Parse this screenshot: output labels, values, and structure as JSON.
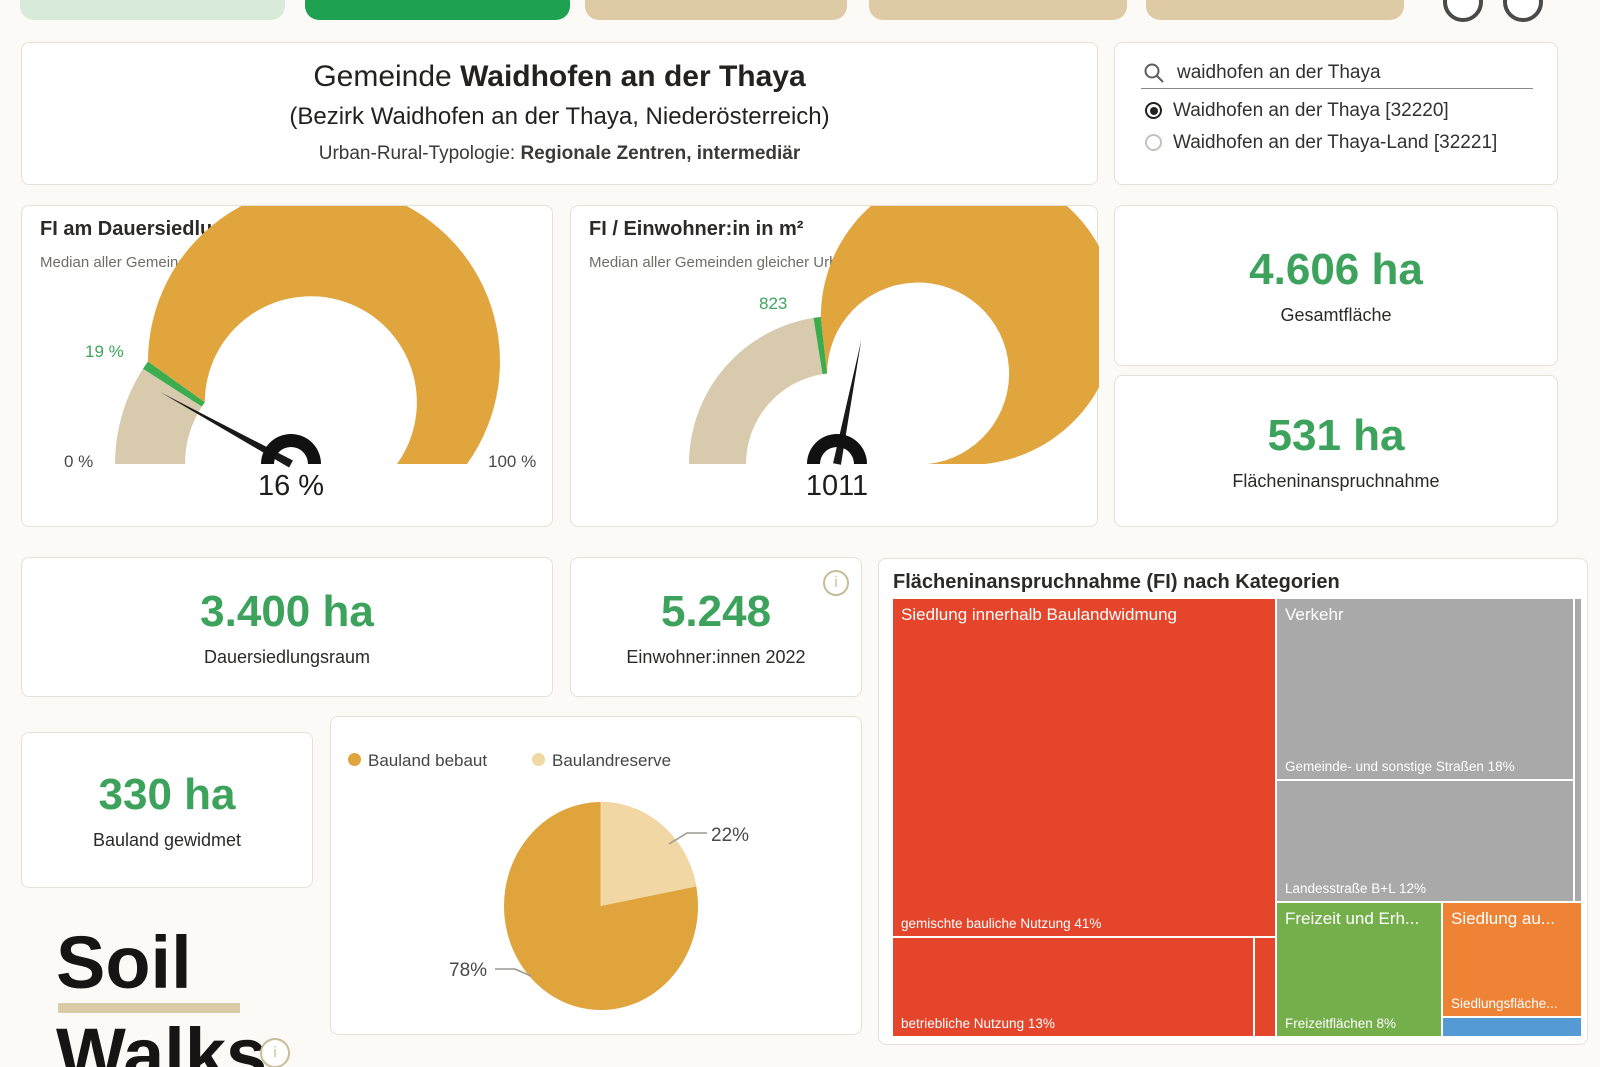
{
  "tabs": {
    "items": [
      {
        "state": "visited"
      },
      {
        "state": "active"
      },
      {
        "state": "default"
      },
      {
        "state": "default"
      },
      {
        "state": "default"
      }
    ]
  },
  "header": {
    "title_prefix": "Gemeinde ",
    "title_bold": "Waidhofen an der Thaya",
    "subtitle": "(Bezirk Waidhofen an der Thaya, Niederösterreich)",
    "typology_label": "Urban-Rural-Typologie: ",
    "typology_value": "Regionale Zentren, intermediär"
  },
  "search": {
    "query": "waidhofen an der Thaya",
    "options": [
      {
        "label": "Waidhofen an der Thaya [32220]",
        "selected": true
      },
      {
        "label": "Waidhofen an der Thaya-Land [32221]",
        "selected": false
      }
    ]
  },
  "kpis": {
    "gesamtflaeche": {
      "value": "4.606 ha",
      "label": "Gesamtfläche"
    },
    "flaecheninanspruchnahme": {
      "value": "531 ha",
      "label": "Flächeninanspruchnahme"
    },
    "dauersiedlungsraum": {
      "value": "3.400 ha",
      "label": "Dauersiedlungsraum"
    },
    "einwohner": {
      "value": "5.248",
      "label": "Einwohner:innen 2022"
    },
    "bauland": {
      "value": "330 ha",
      "label": "Bauland gewidmet"
    }
  },
  "logo": {
    "line1": "Soil",
    "line2": "Walks"
  },
  "colors": {
    "accent_green_text": "#3ca25c",
    "gauge_gold": "#e1a53e",
    "gauge_tan": "#d8caac",
    "gauge_tick_green": "#3cad4e",
    "median_orange": "#dd9f35",
    "pie_dark": "#e0a43c",
    "pie_light": "#f0d7a4",
    "tab_active": "#1ea150",
    "tab_visited": "#d8eada",
    "tab_default": "#decba6",
    "treemap_red": "#e4452b",
    "treemap_gray": "#a9a9a9",
    "treemap_green": "#75af4c",
    "treemap_orange": "#ee8336",
    "treemap_blue": "#549bd5"
  },
  "chart_data": [
    {
      "type": "gauge",
      "title": "FI am Dauersiedlungsraum in %",
      "subtitle_prefix": "Median aller Gemeinden gleicher Urban-Rural-Typologie: ",
      "median_text": "19 %",
      "median": 19,
      "value": 16,
      "value_label": "16 %",
      "min": 0,
      "max": 100,
      "min_label": "0 %",
      "max_label": "100 %",
      "median_tick_label": "19 %"
    },
    {
      "type": "gauge",
      "title": "FI / Einwohner:in in m²",
      "subtitle_prefix": "Median aller Gemeinden gleicher Urban-Rural-Typologie: ",
      "median_text": "823",
      "median": 823,
      "value": 1011,
      "value_label": "1011",
      "min": 0,
      "max": 1800,
      "min_label": "",
      "max_label": "",
      "median_tick_label": "823"
    },
    {
      "type": "pie",
      "legend": [
        "Bauland bebaut",
        "Baulandreserve"
      ],
      "values": [
        78,
        22
      ],
      "labels": [
        "78%",
        "22%"
      ]
    },
    {
      "type": "treemap",
      "title": "Flächeninanspruchnahme (FI) nach Kategorien",
      "groups": [
        {
          "name": "Siedlung innerhalb Baulandwidmung",
          "color": "#e4452b",
          "children": [
            {
              "label": "gemischte bauliche Nutzung 41%",
              "value": 41
            },
            {
              "label": "betriebliche Nutzung 13%",
              "value": 13
            },
            {
              "label": "",
              "value": null
            }
          ]
        },
        {
          "name": "Verkehr",
          "color": "#a9a9a9",
          "children": [
            {
              "label": "Gemeinde- und sonstige Straßen 18%",
              "value": 18
            },
            {
              "label": "Landesstraße B+L 12%",
              "value": 12
            },
            {
              "label": "",
              "value": null
            }
          ]
        },
        {
          "name": "Freizeit und Erh...",
          "color": "#75af4c",
          "children": [
            {
              "label": "Freizeitflächen 8%",
              "value": 8
            }
          ]
        },
        {
          "name": "Siedlung au...",
          "color": "#ee8336",
          "children": [
            {
              "label": "Siedlungsfläche...",
              "value": null
            }
          ]
        },
        {
          "name": "",
          "color": "#549bd5",
          "children": [
            {
              "label": "",
              "value": null
            }
          ]
        }
      ]
    }
  ]
}
